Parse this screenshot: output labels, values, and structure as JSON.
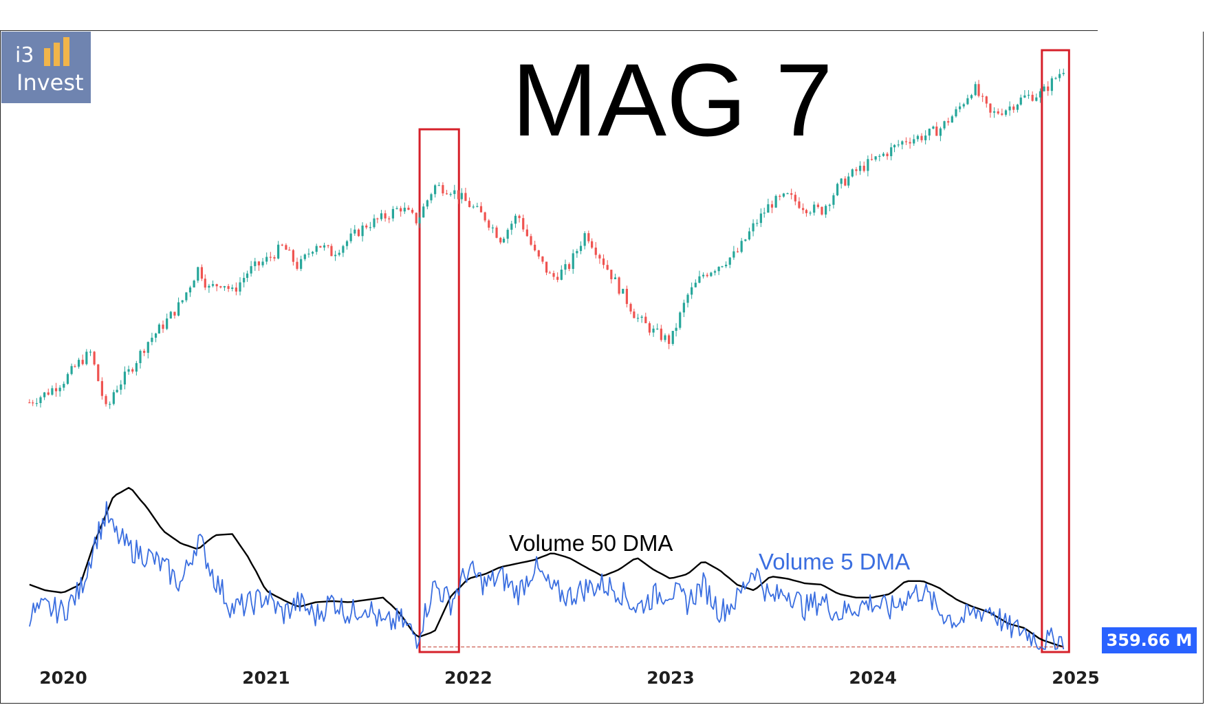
{
  "logo": {
    "line1": "i3",
    "line2": "Invest",
    "icon": "bar-chart-icon"
  },
  "chart_data": {
    "type": "candlestick",
    "title": "MAG 7",
    "x_ticks": [
      "2020",
      "2021",
      "2022",
      "2023",
      "2024",
      "2025"
    ],
    "x_range": [
      "2019-11",
      "2025-03"
    ],
    "price_series": {
      "name": "",
      "colors": {
        "up": "#26a69a",
        "down": "#ef5350"
      },
      "points": [
        [
          "2019-11-01",
          38.0
        ],
        [
          "2019-12-01",
          40.5
        ],
        [
          "2020-01-01",
          44.0
        ],
        [
          "2020-02-01",
          49.5
        ],
        [
          "2020-02-20",
          52.0
        ],
        [
          "2020-03-20",
          35.0
        ],
        [
          "2020-04-01",
          41.0
        ],
        [
          "2020-05-01",
          47.0
        ],
        [
          "2020-06-01",
          55.0
        ],
        [
          "2020-07-01",
          60.0
        ],
        [
          "2020-08-01",
          66.0
        ],
        [
          "2020-09-01",
          76.0
        ],
        [
          "2020-09-20",
          70.0
        ],
        [
          "2020-10-15",
          72.0
        ],
        [
          "2020-11-01",
          69.0
        ],
        [
          "2020-12-01",
          75.0
        ],
        [
          "2021-01-01",
          78.0
        ],
        [
          "2021-02-01",
          82.0
        ],
        [
          "2021-03-01",
          76.0
        ],
        [
          "2021-04-01",
          83.0
        ],
        [
          "2021-05-01",
          80.0
        ],
        [
          "2021-06-01",
          84.0
        ],
        [
          "2021-07-01",
          88.0
        ],
        [
          "2021-08-01",
          90.0
        ],
        [
          "2021-09-01",
          93.0
        ],
        [
          "2021-10-01",
          89.0
        ],
        [
          "2021-11-01",
          99.0
        ],
        [
          "2021-12-01",
          98.0
        ],
        [
          "2022-01-01",
          94.0
        ],
        [
          "2022-02-01",
          90.0
        ],
        [
          "2022-03-01",
          84.0
        ],
        [
          "2022-04-01",
          91.0
        ],
        [
          "2022-05-01",
          80.0
        ],
        [
          "2022-06-01",
          73.0
        ],
        [
          "2022-07-01",
          76.0
        ],
        [
          "2022-08-01",
          86.0
        ],
        [
          "2022-09-01",
          78.0
        ],
        [
          "2022-10-01",
          70.0
        ],
        [
          "2022-11-01",
          62.0
        ],
        [
          "2022-12-01",
          58.0
        ],
        [
          "2023-01-01",
          55.0
        ],
        [
          "2023-02-01",
          68.0
        ],
        [
          "2023-03-01",
          74.0
        ],
        [
          "2023-04-01",
          77.0
        ],
        [
          "2023-05-01",
          80.0
        ],
        [
          "2023-06-01",
          88.0
        ],
        [
          "2023-07-01",
          94.0
        ],
        [
          "2023-08-01",
          96.0
        ],
        [
          "2023-09-01",
          93.0
        ],
        [
          "2023-10-01",
          92.0
        ],
        [
          "2023-11-01",
          99.0
        ],
        [
          "2023-12-01",
          103.0
        ],
        [
          "2024-01-01",
          106.0
        ],
        [
          "2024-02-01",
          109.0
        ],
        [
          "2024-03-01",
          112.0
        ],
        [
          "2024-04-01",
          113.0
        ],
        [
          "2024-05-01",
          115.0
        ],
        [
          "2024-06-01",
          120.0
        ],
        [
          "2024-07-01",
          127.0
        ],
        [
          "2024-08-01",
          119.0
        ],
        [
          "2024-09-01",
          121.0
        ],
        [
          "2024-10-01",
          124.0
        ],
        [
          "2024-11-01",
          125.0
        ],
        [
          "2024-12-10",
          132.0
        ]
      ]
    },
    "volume_50dma": {
      "name": "Volume 50 DMA",
      "color": "#000000",
      "points": [
        [
          "2019-11-01",
          0.55
        ],
        [
          "2019-12-01",
          0.5
        ],
        [
          "2020-01-01",
          0.48
        ],
        [
          "2020-02-01",
          0.55
        ],
        [
          "2020-03-01",
          0.95
        ],
        [
          "2020-04-01",
          1.3
        ],
        [
          "2020-05-01",
          1.38
        ],
        [
          "2020-06-01",
          1.2
        ],
        [
          "2020-07-01",
          1.0
        ],
        [
          "2020-08-01",
          0.9
        ],
        [
          "2020-09-01",
          0.85
        ],
        [
          "2020-10-01",
          0.97
        ],
        [
          "2020-11-01",
          0.98
        ],
        [
          "2020-12-01",
          0.78
        ],
        [
          "2021-01-01",
          0.5
        ],
        [
          "2021-02-01",
          0.42
        ],
        [
          "2021-03-01",
          0.36
        ],
        [
          "2021-04-01",
          0.4
        ],
        [
          "2021-05-01",
          0.41
        ],
        [
          "2021-06-01",
          0.4
        ],
        [
          "2021-07-01",
          0.42
        ],
        [
          "2021-08-01",
          0.44
        ],
        [
          "2021-09-01",
          0.3
        ],
        [
          "2021-10-01",
          0.1
        ],
        [
          "2021-11-01",
          0.15
        ],
        [
          "2021-12-01",
          0.45
        ],
        [
          "2022-01-01",
          0.6
        ],
        [
          "2022-02-01",
          0.64
        ],
        [
          "2022-03-01",
          0.7
        ],
        [
          "2022-04-01",
          0.73
        ],
        [
          "2022-05-01",
          0.76
        ],
        [
          "2022-06-01",
          0.82
        ],
        [
          "2022-07-01",
          0.78
        ],
        [
          "2022-08-01",
          0.7
        ],
        [
          "2022-09-01",
          0.62
        ],
        [
          "2022-10-01",
          0.68
        ],
        [
          "2022-11-01",
          0.78
        ],
        [
          "2022-12-01",
          0.68
        ],
        [
          "2023-01-01",
          0.6
        ],
        [
          "2023-02-01",
          0.64
        ],
        [
          "2023-03-01",
          0.75
        ],
        [
          "2023-04-01",
          0.67
        ],
        [
          "2023-05-01",
          0.55
        ],
        [
          "2023-06-01",
          0.5
        ],
        [
          "2023-07-01",
          0.62
        ],
        [
          "2023-08-01",
          0.6
        ],
        [
          "2023-09-01",
          0.56
        ],
        [
          "2023-10-01",
          0.55
        ],
        [
          "2023-11-01",
          0.47
        ],
        [
          "2023-12-01",
          0.44
        ],
        [
          "2024-01-01",
          0.44
        ],
        [
          "2024-02-01",
          0.47
        ],
        [
          "2024-03-01",
          0.58
        ],
        [
          "2024-04-01",
          0.58
        ],
        [
          "2024-05-01",
          0.52
        ],
        [
          "2024-06-01",
          0.42
        ],
        [
          "2024-07-01",
          0.36
        ],
        [
          "2024-08-01",
          0.31
        ],
        [
          "2024-09-01",
          0.22
        ],
        [
          "2024-10-01",
          0.18
        ],
        [
          "2024-11-01",
          0.08
        ],
        [
          "2024-12-10",
          0.02
        ]
      ]
    },
    "volume_5dma": {
      "name": "Volume 5 DMA",
      "color": "#3a6ee0",
      "points": [
        [
          "2019-11-01",
          0.3
        ],
        [
          "2019-12-01",
          0.35
        ],
        [
          "2020-01-01",
          0.32
        ],
        [
          "2020-02-01",
          0.5
        ],
        [
          "2020-03-01",
          0.95
        ],
        [
          "2020-03-20",
          1.15
        ],
        [
          "2020-04-01",
          1.0
        ],
        [
          "2020-05-01",
          0.85
        ],
        [
          "2020-06-01",
          0.8
        ],
        [
          "2020-07-01",
          0.7
        ],
        [
          "2020-08-01",
          0.55
        ],
        [
          "2020-09-01",
          0.95
        ],
        [
          "2020-10-01",
          0.6
        ],
        [
          "2020-11-01",
          0.35
        ],
        [
          "2020-12-01",
          0.38
        ],
        [
          "2021-01-01",
          0.45
        ],
        [
          "2021-02-01",
          0.3
        ],
        [
          "2021-03-01",
          0.4
        ],
        [
          "2021-04-01",
          0.28
        ],
        [
          "2021-05-01",
          0.42
        ],
        [
          "2021-06-01",
          0.3
        ],
        [
          "2021-07-01",
          0.38
        ],
        [
          "2021-08-01",
          0.2
        ],
        [
          "2021-09-01",
          0.25
        ],
        [
          "2021-10-01",
          0.1
        ],
        [
          "2021-11-01",
          0.55
        ],
        [
          "2021-12-01",
          0.4
        ],
        [
          "2022-01-01",
          0.68
        ],
        [
          "2022-02-01",
          0.55
        ],
        [
          "2022-03-01",
          0.62
        ],
        [
          "2022-04-01",
          0.48
        ],
        [
          "2022-05-01",
          0.7
        ],
        [
          "2022-06-01",
          0.5
        ],
        [
          "2022-07-01",
          0.45
        ],
        [
          "2022-08-01",
          0.52
        ],
        [
          "2022-09-01",
          0.55
        ],
        [
          "2022-10-01",
          0.5
        ],
        [
          "2022-11-01",
          0.35
        ],
        [
          "2022-12-01",
          0.45
        ],
        [
          "2023-01-01",
          0.5
        ],
        [
          "2023-02-01",
          0.4
        ],
        [
          "2023-03-01",
          0.55
        ],
        [
          "2023-04-01",
          0.32
        ],
        [
          "2023-05-01",
          0.42
        ],
        [
          "2023-06-01",
          0.7
        ],
        [
          "2023-07-01",
          0.42
        ],
        [
          "2023-08-01",
          0.5
        ],
        [
          "2023-09-01",
          0.35
        ],
        [
          "2023-10-01",
          0.42
        ],
        [
          "2023-11-01",
          0.3
        ],
        [
          "2023-12-01",
          0.36
        ],
        [
          "2024-01-01",
          0.4
        ],
        [
          "2024-02-01",
          0.33
        ],
        [
          "2024-03-01",
          0.45
        ],
        [
          "2024-04-01",
          0.5
        ],
        [
          "2024-05-01",
          0.32
        ],
        [
          "2024-06-01",
          0.24
        ],
        [
          "2024-07-01",
          0.3
        ],
        [
          "2024-08-01",
          0.35
        ],
        [
          "2024-09-01",
          0.18
        ],
        [
          "2024-10-01",
          0.16
        ],
        [
          "2024-11-01",
          0.06
        ],
        [
          "2024-12-10",
          0.09
        ]
      ]
    },
    "highlight_boxes": [
      {
        "from": "2021-10-05",
        "to": "2021-12-15",
        "color": "#d6202a"
      },
      {
        "from": "2024-11-01",
        "to": "2024-12-20",
        "color": "#d6202a"
      }
    ],
    "reference_line": {
      "label": "",
      "color": "#c0392b",
      "from": "2021-10-10",
      "to": "2024-12-10",
      "level": 0.02
    },
    "annotations": {
      "volume_50dma_label": "Volume 50 DMA",
      "volume_5dma_label": "Volume 5 DMA"
    },
    "last_volume_label": "359.66 M",
    "last_volume_color": "#2962ff"
  }
}
